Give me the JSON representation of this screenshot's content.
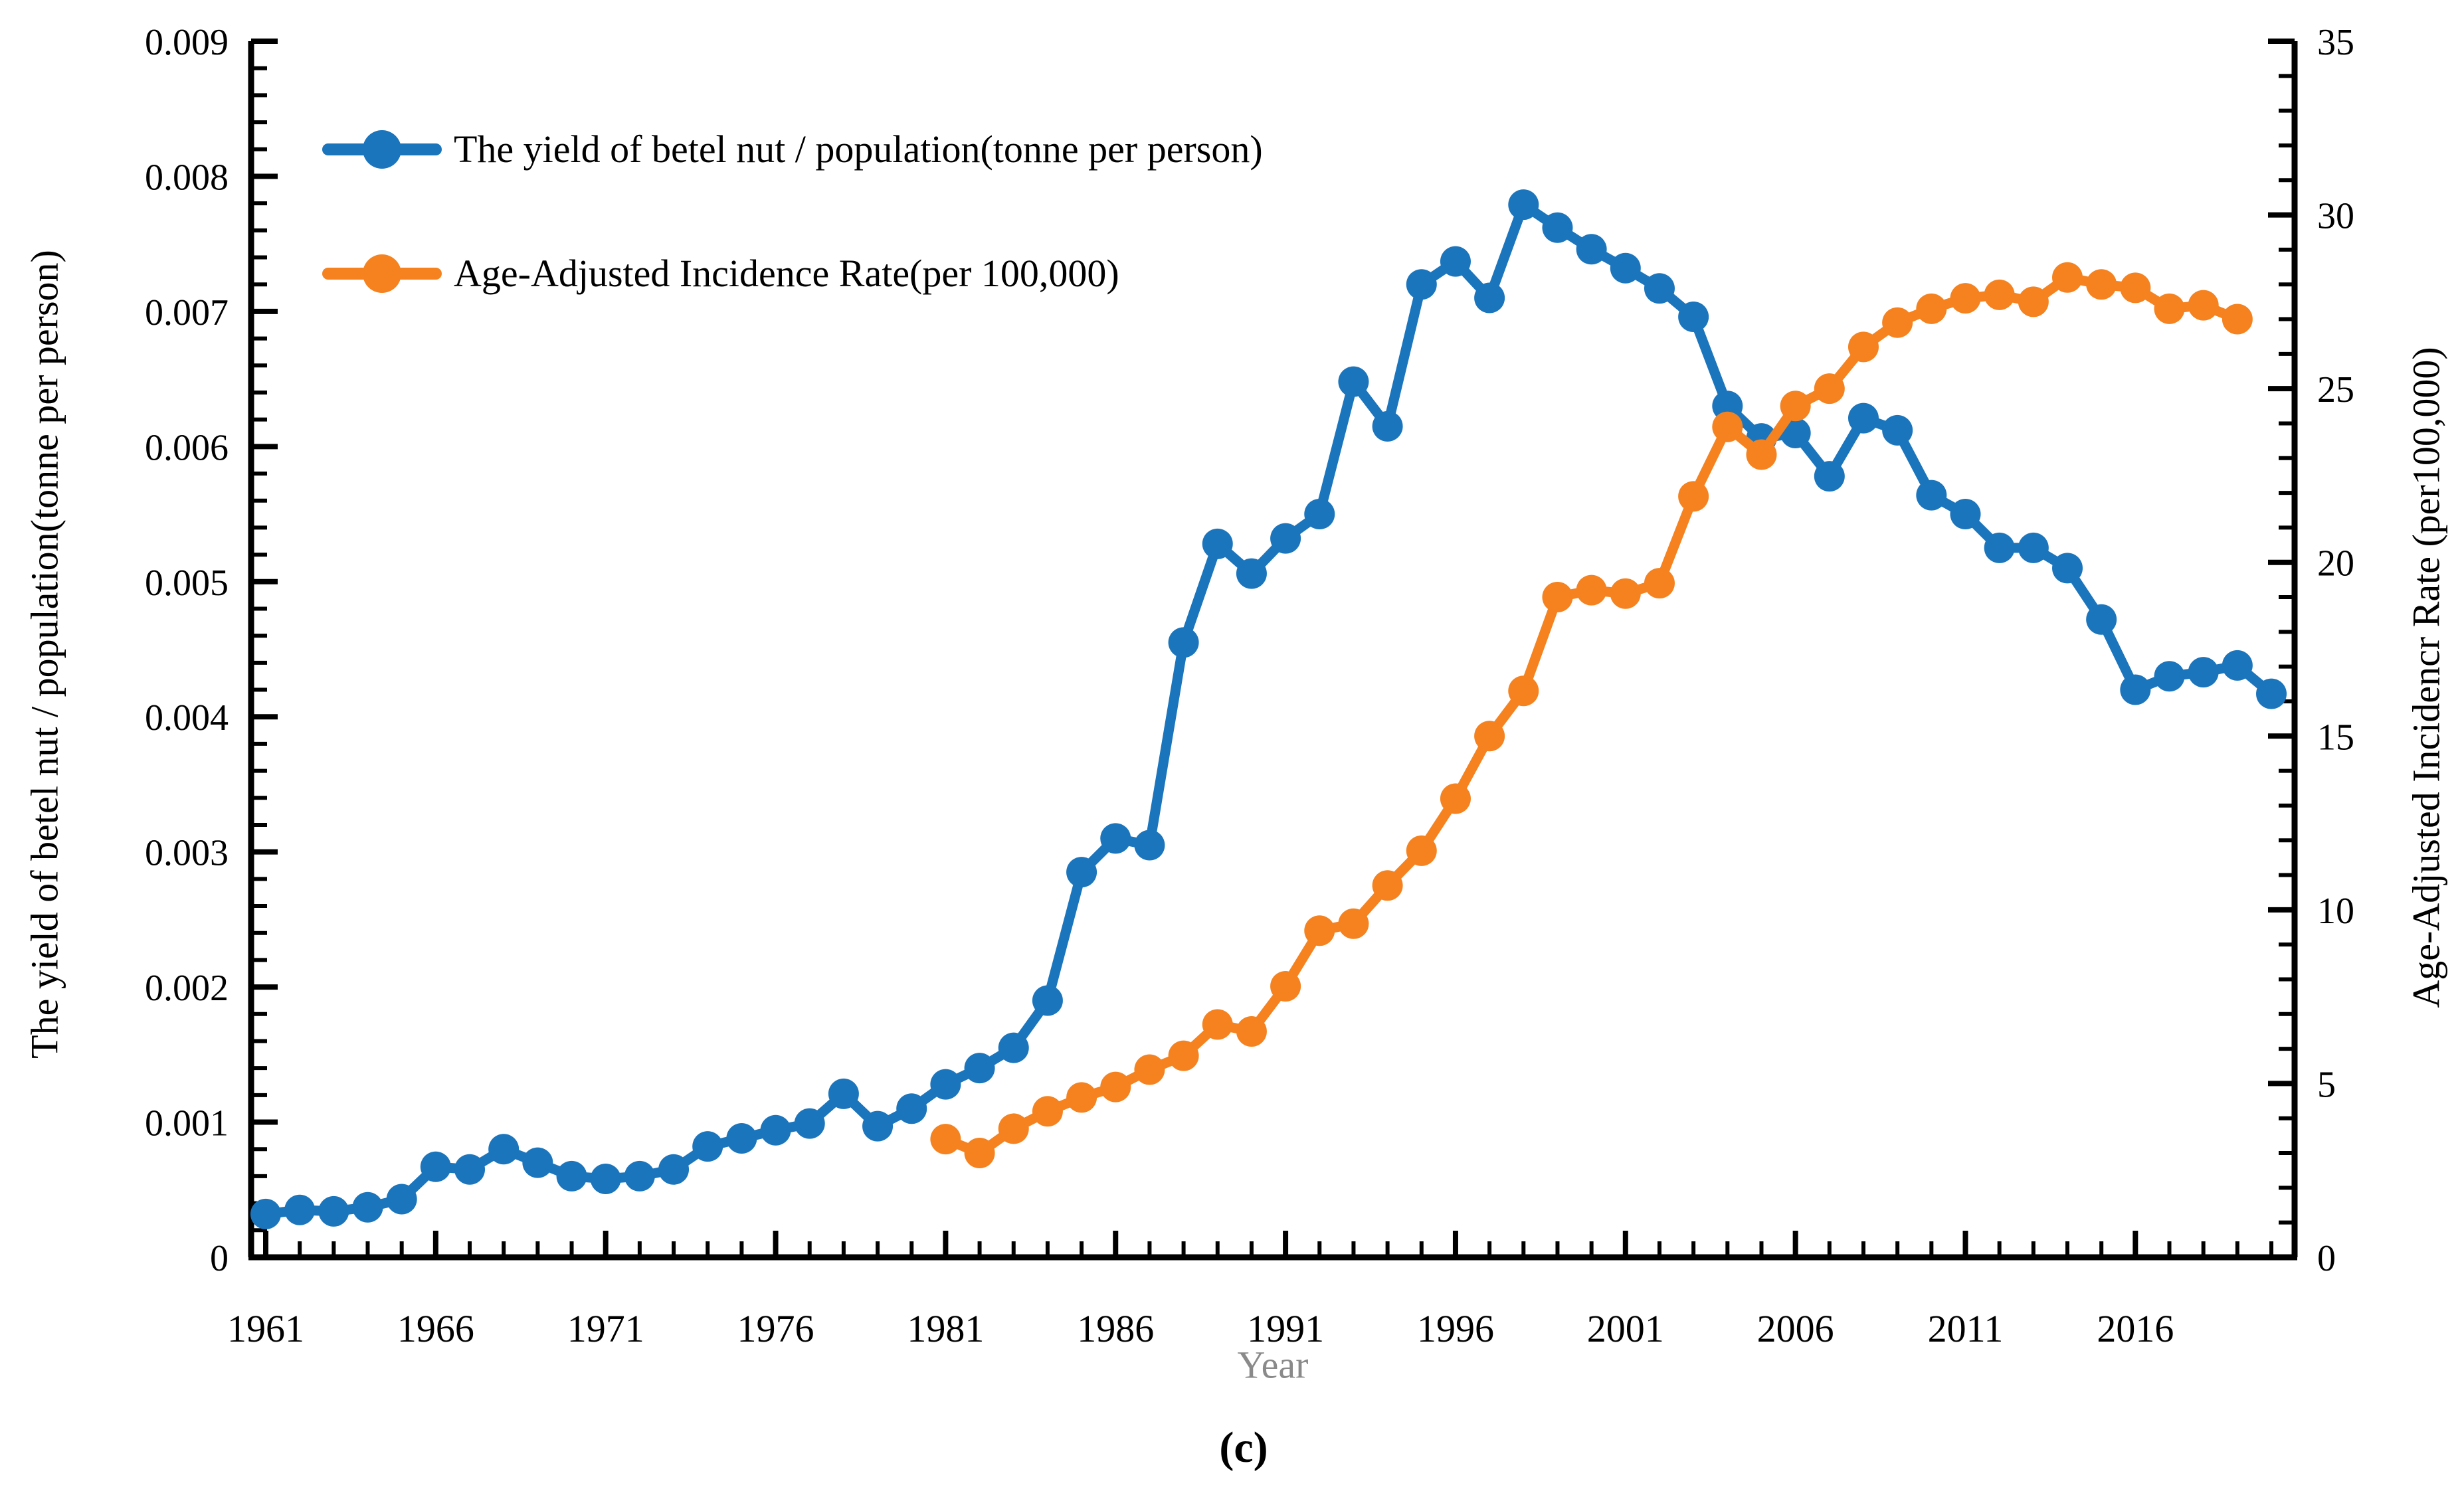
{
  "figure": {
    "caption": "(c)",
    "background": "#ffffff"
  },
  "chart_data": {
    "type": "line",
    "title": "",
    "xlabel": "Year",
    "ylabel_left": "The yield of betel nut / population(tonne per person)",
    "ylabel_right": "Age-Adjusted Incidencr Rate (per100,000)",
    "axes": {
      "x": {
        "min": 1960.6,
        "max": 2020.7,
        "tick_years": [
          1961,
          1966,
          1971,
          1976,
          1981,
          1986,
          1991,
          1996,
          2001,
          2006,
          2011,
          2016
        ],
        "tick_labels": [
          "1961",
          "1966",
          "1971",
          "1976",
          "1981",
          "1986",
          "1991",
          "1996",
          "2001",
          "2006",
          "2011",
          "2016"
        ],
        "minor_step": 1
      },
      "y_left": {
        "min": 0,
        "max": 0.009,
        "major_step": 0.001,
        "minor_step": 0.0002,
        "tick_labels": [
          "0",
          "0.001",
          "0.002",
          "0.003",
          "0.004",
          "0.005",
          "0.006",
          "0.007",
          "0.008",
          "0.009"
        ]
      },
      "y_right": {
        "min": 0,
        "max": 35,
        "major_step": 5,
        "minor_step": 1,
        "tick_labels": [
          "0",
          "5",
          "10",
          "15",
          "20",
          "25",
          "30",
          "35"
        ]
      },
      "grid": false
    },
    "legend_position": "top-left-inside",
    "series": [
      {
        "name": "The yield of betel nut / population(tonne per person)",
        "axis": "left",
        "color": "#1b75bc",
        "x": [
          1961,
          1962,
          1963,
          1964,
          1965,
          1966,
          1967,
          1968,
          1969,
          1970,
          1971,
          1972,
          1973,
          1974,
          1975,
          1976,
          1977,
          1978,
          1979,
          1980,
          1981,
          1982,
          1983,
          1984,
          1985,
          1986,
          1987,
          1988,
          1989,
          1990,
          1991,
          1992,
          1993,
          1994,
          1995,
          1996,
          1997,
          1998,
          1999,
          2000,
          2001,
          2002,
          2003,
          2004,
          2005,
          2006,
          2007,
          2008,
          2009,
          2010,
          2011,
          2012,
          2013,
          2014,
          2015,
          2016,
          2017,
          2018,
          2019,
          2020
        ],
        "values": [
          0.00032,
          0.00035,
          0.00034,
          0.00037,
          0.00043,
          0.00067,
          0.00065,
          0.0008,
          0.0007,
          0.0006,
          0.00058,
          0.0006,
          0.00065,
          0.00082,
          0.00088,
          0.00094,
          0.00099,
          0.00121,
          0.00097,
          0.0011,
          0.00128,
          0.0014,
          0.00155,
          0.0019,
          0.00285,
          0.0031,
          0.00305,
          0.00455,
          0.00528,
          0.00506,
          0.00532,
          0.0055,
          0.00648,
          0.00615,
          0.0072,
          0.00737,
          0.0071,
          0.00779,
          0.00762,
          0.00746,
          0.00732,
          0.00717,
          0.00696,
          0.0063,
          0.00606,
          0.0061,
          0.00578,
          0.00621,
          0.00612,
          0.00564,
          0.0055,
          0.00525,
          0.00525,
          0.0051,
          0.00472,
          0.0042,
          0.0043,
          0.00433,
          0.00438,
          0.00417
        ]
      },
      {
        "name": "Age-Adjusted Incidence Rate(per 100,000)",
        "axis": "right",
        "color": "#f5821f",
        "x": [
          1981,
          1982,
          1983,
          1984,
          1985,
          1986,
          1987,
          1988,
          1989,
          1990,
          1991,
          1992,
          1993,
          1994,
          1995,
          1996,
          1997,
          1998,
          1999,
          2000,
          2001,
          2002,
          2003,
          2004,
          2005,
          2006,
          2007,
          2008,
          2009,
          2010,
          2011,
          2012,
          2013,
          2014,
          2015,
          2016,
          2017,
          2018,
          2019
        ],
        "values": [
          3.4,
          3.0,
          3.7,
          4.2,
          4.6,
          4.9,
          5.4,
          5.8,
          6.7,
          6.5,
          7.8,
          9.4,
          9.6,
          10.7,
          11.7,
          13.2,
          15.0,
          16.3,
          19.0,
          19.2,
          19.1,
          19.4,
          21.9,
          23.9,
          23.1,
          24.5,
          25.0,
          26.2,
          26.9,
          27.3,
          27.6,
          27.7,
          27.5,
          28.2,
          28.0,
          27.9,
          27.3,
          27.4,
          27.0
        ]
      }
    ]
  }
}
